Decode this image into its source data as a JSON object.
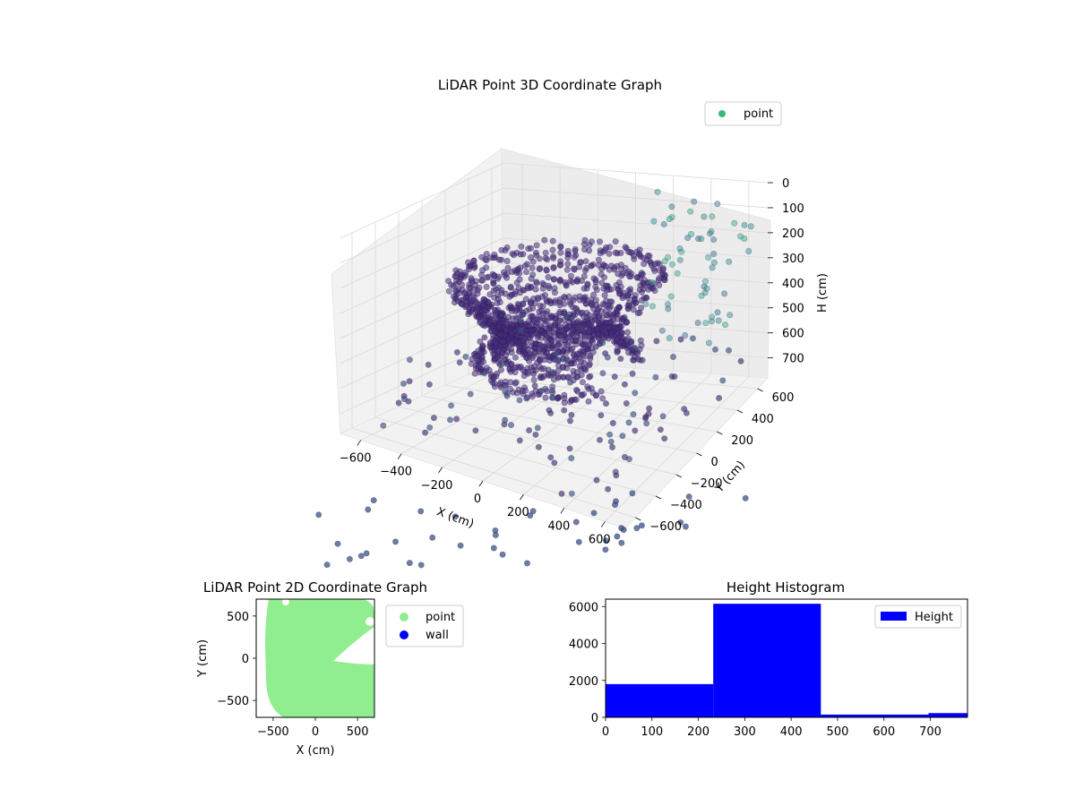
{
  "chart_data": [
    {
      "type": "scatter",
      "projection": "3d",
      "title": "LiDAR Point 3D Coordinate Graph",
      "xlabel": "X (cm)",
      "ylabel": "Y (cm)",
      "zlabel": "H (cm)",
      "xlim": [
        -700,
        700
      ],
      "ylim": [
        -700,
        700
      ],
      "zlim": [
        0,
        780
      ],
      "z_axis_inverted": true,
      "x_ticks": [
        "−600",
        "−400",
        "−200",
        "0",
        "200",
        "400",
        "600"
      ],
      "y_ticks": [
        "−600",
        "−400",
        "−200",
        "0",
        "200",
        "400",
        "600"
      ],
      "z_ticks": [
        "0",
        "100",
        "200",
        "300",
        "400",
        "500",
        "600",
        "700"
      ],
      "legend": {
        "labels": [
          "point"
        ],
        "location": "upper right"
      },
      "colormap": "viridis",
      "series": [
        {
          "name": "point",
          "description": "LiDAR returns forming curved wall structure around the origin; color encodes height",
          "rings": [
            {
              "z": 240,
              "radius": 460
            },
            {
              "z": 290,
              "radius": 400
            },
            {
              "z": 340,
              "radius": 340
            },
            {
              "z": 390,
              "radius": 280
            },
            {
              "z": 440,
              "radius": 250
            },
            {
              "z": 490,
              "radius": 280
            },
            {
              "z": 540,
              "radius": 360
            }
          ],
          "marker_color": "#472d7b"
        }
      ]
    },
    {
      "type": "scatter",
      "title": "LiDAR Point 2D Coordinate Graph",
      "xlabel": "X (cm)",
      "ylabel": "Y (cm)",
      "xlim": [
        -700,
        700
      ],
      "ylim": [
        -700,
        700
      ],
      "x_ticks": [
        "−500",
        "0",
        "500"
      ],
      "y_ticks": [
        "500",
        "0",
        "−500"
      ],
      "legend": {
        "labels": [
          "point",
          "wall"
        ],
        "location": "outside upper right"
      },
      "series": [
        {
          "name": "point",
          "color": "#90ee90",
          "description": "dense filled region covering most of the plot except a notch on the right side"
        },
        {
          "name": "wall",
          "color": "#0000ff"
        }
      ]
    },
    {
      "type": "bar",
      "subtype": "histogram",
      "title": "Height Histogram",
      "xlim": [
        0,
        780
      ],
      "ylim": [
        0,
        6400
      ],
      "x_ticks": [
        "0",
        "100",
        "200",
        "300",
        "400",
        "500",
        "600",
        "700"
      ],
      "y_ticks": [
        "0",
        "2000",
        "4000",
        "6000"
      ],
      "legend": {
        "labels": [
          "Height"
        ],
        "location": "upper right"
      },
      "bins": [
        {
          "start": 0,
          "end": 232,
          "count": 1800
        },
        {
          "start": 232,
          "end": 464,
          "count": 6150
        },
        {
          "start": 464,
          "end": 696,
          "count": 150
        },
        {
          "start": 696,
          "end": 780,
          "count": 230
        }
      ],
      "color": "#0000ff"
    }
  ]
}
